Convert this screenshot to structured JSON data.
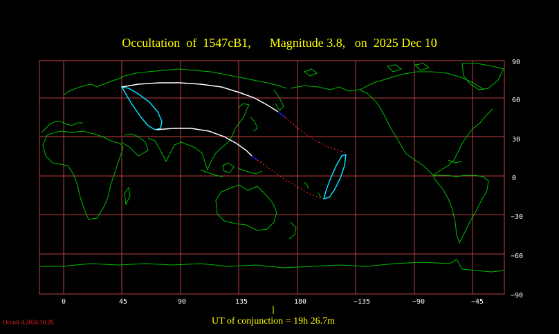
{
  "title": "Occultation  of  1547cB1,      Magnitude 3.8,   on  2025 Dec 10",
  "footer": "UT of conjunction = 19h 26.7m",
  "version": "Occult 4.2024.10.26",
  "map": {
    "longitude_labels": [
      "0",
      "45",
      "90",
      "135",
      "180",
      "−135",
      "−90",
      "−45"
    ],
    "latitude_labels": [
      "90",
      "60",
      "30",
      "0",
      "−30",
      "−60",
      "−90"
    ]
  },
  "colors": {
    "grid": "#c04040",
    "coast": "#00c000",
    "path_day": "#ffffff",
    "path_night": "#2020ff",
    "path_dotted": "#ff2020",
    "limit_curve": "#00e5ff",
    "title": "#ffff00"
  }
}
